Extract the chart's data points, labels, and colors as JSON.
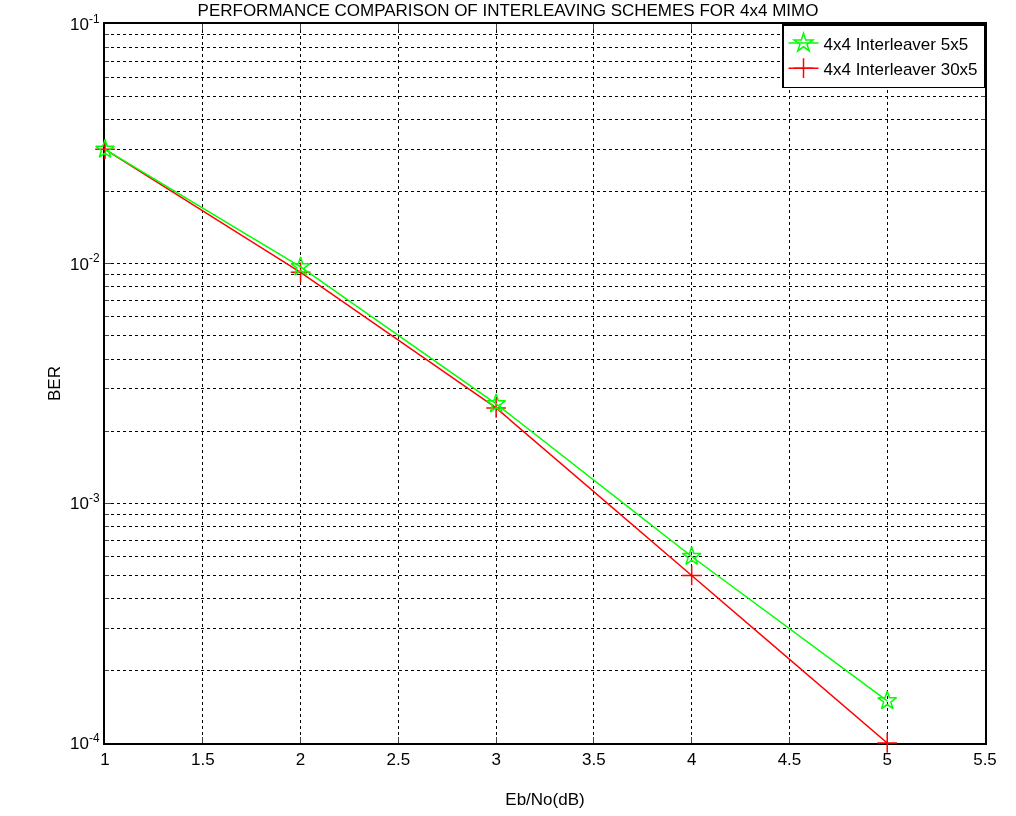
{
  "chart_data": {
    "type": "line",
    "title": "PERFORMANCE COMPARISON OF INTERLEAVING SCHEMES FOR 4x4 MIMO",
    "xlabel": "Eb/No(dB)",
    "ylabel": "BER",
    "x": [
      1,
      2,
      3,
      4,
      5
    ],
    "series": [
      {
        "name": "4x4 Interleaver 5x5",
        "color": "#00ff00",
        "marker": "star",
        "values": [
          0.03,
          0.0097,
          0.0026,
          0.0006,
          0.00015
        ]
      },
      {
        "name": "4x4 Interleaver 30x5",
        "color": "#ff0000",
        "marker": "cross",
        "values": [
          0.03,
          0.0092,
          0.0025,
          0.0005,
          0.0001
        ]
      }
    ],
    "log": "y",
    "xlim": [
      1,
      5.5
    ],
    "xticks": [
      1,
      1.5,
      2,
      2.5,
      3,
      3.5,
      4,
      4.5,
      5,
      5.5
    ],
    "ylim": [
      0.0001,
      0.1
    ],
    "yticks": [
      {
        "value": 0.0001,
        "label": "10$^{-4}$"
      },
      {
        "value": 0.001,
        "label": "10$^{-3}$"
      },
      {
        "value": 0.01,
        "label": "10$^{-2}$"
      },
      {
        "value": 0.1,
        "label": "10$^{-1}$"
      }
    ],
    "grid": true,
    "legend": "top right",
    "line_style": "solid"
  }
}
